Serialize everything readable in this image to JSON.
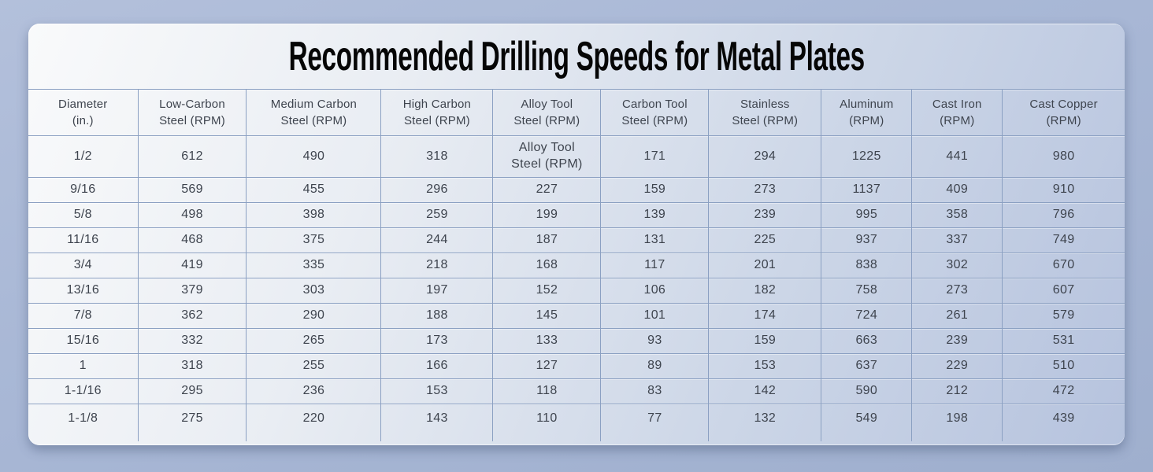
{
  "chart_data": {
    "type": "table",
    "title": "Recommended Drilling Speeds for Metal Plates",
    "columns": [
      "Diameter\n(in.)",
      "Low-Carbon\nSteel (RPM)",
      "Medium Carbon\nSteel (RPM)",
      "High Carbon\nSteel (RPM)",
      "Alloy Tool\nSteel (RPM)",
      "Carbon Tool\nSteel (RPM)",
      "Stainless\nSteel (RPM)",
      "Aluminum\n(RPM)",
      "Cast Iron\n(RPM)",
      "Cast Copper\n(RPM)"
    ],
    "rows": [
      [
        "1/2",
        "612",
        "490",
        "318",
        "Alloy Tool\nSteel (RPM)",
        "171",
        "294",
        "1225",
        "441",
        "980"
      ],
      [
        "9/16",
        "569",
        "455",
        "296",
        "227",
        "159",
        "273",
        "1137",
        "409",
        "910"
      ],
      [
        "5/8",
        "498",
        "398",
        "259",
        "199",
        "139",
        "239",
        "995",
        "358",
        "796"
      ],
      [
        "11/16",
        "468",
        "375",
        "244",
        "187",
        "131",
        "225",
        "937",
        "337",
        "749"
      ],
      [
        "3/4",
        "419",
        "335",
        "218",
        "168",
        "117",
        "201",
        "838",
        "302",
        "670"
      ],
      [
        "13/16",
        "379",
        "303",
        "197",
        "152",
        "106",
        "182",
        "758",
        "273",
        "607"
      ],
      [
        "7/8",
        "362",
        "290",
        "188",
        "145",
        "101",
        "174",
        "724",
        "261",
        "579"
      ],
      [
        "15/16",
        "332",
        "265",
        "173",
        "133",
        "93",
        "159",
        "663",
        "239",
        "531"
      ],
      [
        "1",
        "318",
        "255",
        "166",
        "127",
        "89",
        "153",
        "637",
        "229",
        "510"
      ],
      [
        "1-1/16",
        "295",
        "236",
        "153",
        "118",
        "83",
        "142",
        "590",
        "212",
        "472"
      ],
      [
        "1-1/8",
        "275",
        "220",
        "143",
        "110",
        "77",
        "132",
        "549",
        "198",
        "439"
      ]
    ],
    "column_width_percents": [
      9.99,
      9.91,
      12.28,
      10.2,
      9.84,
      9.84,
      10.27,
      8.26,
      8.26,
      11.15
    ]
  },
  "colors": {
    "page_background_start": "#b3c0db",
    "page_background_end": "#9fafce",
    "card_background_start": "#f9fafb",
    "card_background_end": "#b6c3de",
    "grid_border": "#8ba0c2",
    "cell_text": "#3e444e",
    "title_text": "#060606"
  }
}
